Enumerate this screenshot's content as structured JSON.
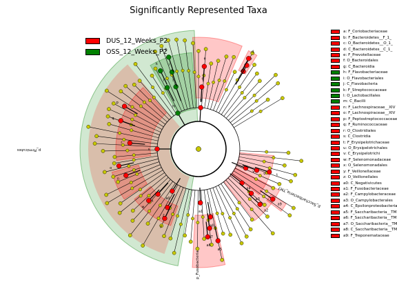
{
  "chart_data": {
    "type": "cladogram",
    "title": "Significantly Represented Taxa",
    "groups": [
      {
        "name": "DUS_12_Weeks_P2",
        "color": "#ff0000"
      },
      {
        "name": "OSS_12_Weeks_P2",
        "color": "#008000"
      }
    ],
    "node_color_nonsignificant": "#c8c800",
    "taxa": [
      {
        "key": "a",
        "label": "a: F_Coriobacteriaceae",
        "group": "DUS_12_Weeks_P2"
      },
      {
        "key": "b",
        "label": "b: F_Bacteroidetes__F_1_",
        "group": "DUS_12_Weeks_P2"
      },
      {
        "key": "c",
        "label": "c: O_Bacteroidetes__O_1_",
        "group": "DUS_12_Weeks_P2"
      },
      {
        "key": "d",
        "label": "d: C_Bacteroidetes__C_1_",
        "group": "DUS_12_Weeks_P2"
      },
      {
        "key": "e",
        "label": "e: F_Prevotellaceae",
        "group": "DUS_12_Weeks_P2"
      },
      {
        "key": "f",
        "label": "f: O_Bacteroidales",
        "group": "DUS_12_Weeks_P2"
      },
      {
        "key": "g",
        "label": "g: C_Bacteroidia",
        "group": "DUS_12_Weeks_P2"
      },
      {
        "key": "h",
        "label": "h: F_Flavobacteriaceae",
        "group": "OSS_12_Weeks_P2"
      },
      {
        "key": "i",
        "label": "i: O_Flavobacteriales",
        "group": "OSS_12_Weeks_P2"
      },
      {
        "key": "j",
        "label": "j: C_Flavobacteria",
        "group": "OSS_12_Weeks_P2"
      },
      {
        "key": "k",
        "label": "k: F_Streptococcaceae",
        "group": "OSS_12_Weeks_P2"
      },
      {
        "key": "l",
        "label": "l: O_Lactobacillales",
        "group": "OSS_12_Weeks_P2"
      },
      {
        "key": "m",
        "label": "m: C_Bacilli",
        "group": "OSS_12_Weeks_P2"
      },
      {
        "key": "n",
        "label": "n: F_Lachnospiraceae__XIV",
        "group": "DUS_12_Weeks_P2"
      },
      {
        "key": "o",
        "label": "o: F_Lachnospiraceae__XIV",
        "group": "DUS_12_Weeks_P2"
      },
      {
        "key": "p",
        "label": "p: F_Peptostreptococcaceae",
        "group": "DUS_12_Weeks_P2"
      },
      {
        "key": "q",
        "label": "q: F_Ruminococcaceae",
        "group": "DUS_12_Weeks_P2"
      },
      {
        "key": "r",
        "label": "r: O_Clostridiales",
        "group": "DUS_12_Weeks_P2"
      },
      {
        "key": "s",
        "label": "s: C_Clostridia",
        "group": "DUS_12_Weeks_P2"
      },
      {
        "key": "t",
        "label": "t: F_Erysipelotrichaceae",
        "group": "DUS_12_Weeks_P2"
      },
      {
        "key": "u",
        "label": "u: O_Erysipelotrichales",
        "group": "DUS_12_Weeks_P2"
      },
      {
        "key": "v",
        "label": "v: C_Erysipelotrichi",
        "group": "DUS_12_Weeks_P2"
      },
      {
        "key": "w",
        "label": "w: F_Selenomonadaceae",
        "group": "DUS_12_Weeks_P2"
      },
      {
        "key": "x",
        "label": "x: O_Selenomonadales",
        "group": "DUS_12_Weeks_P2"
      },
      {
        "key": "y",
        "label": "y: F_Veillonellaceae",
        "group": "DUS_12_Weeks_P2"
      },
      {
        "key": "z",
        "label": "z: O_Veillonellales",
        "group": "DUS_12_Weeks_P2"
      },
      {
        "key": "a0",
        "label": "a0: C_Negativicutes",
        "group": "DUS_12_Weeks_P2"
      },
      {
        "key": "a1",
        "label": "a1: F_Fusobacteriaceae",
        "group": "DUS_12_Weeks_P2"
      },
      {
        "key": "a2",
        "label": "a2: F_Campylobacteraceae",
        "group": "DUS_12_Weeks_P2"
      },
      {
        "key": "a3",
        "label": "a3: O_Campylobacterales",
        "group": "DUS_12_Weeks_P2"
      },
      {
        "key": "a4",
        "label": "a4: C_Epsilonproteobacteria",
        "group": "DUS_12_Weeks_P2"
      },
      {
        "key": "a5",
        "label": "a5: F_Saccharibacteria__TM",
        "group": "DUS_12_Weeks_P2"
      },
      {
        "key": "a6",
        "label": "a6: F_Saccharibacteria__TM",
        "group": "DUS_12_Weeks_P2"
      },
      {
        "key": "a7",
        "label": "a7: O_Saccharibacteria__TM",
        "group": "DUS_12_Weeks_P2"
      },
      {
        "key": "a8",
        "label": "a8: C_Saccharibacteria__TM",
        "group": "DUS_12_Weeks_P2"
      },
      {
        "key": "a9",
        "label": "a9: F_Treponemataceae",
        "group": "DUS_12_Weeks_P2"
      }
    ],
    "phylum_labels": [
      {
        "text": "p_Firmicutes",
        "group": "OSS_12_Weeks_P2"
      },
      {
        "text": "p_Fusobacteria",
        "group": "DUS_12_Weeks_P2"
      },
      {
        "text": "p_Saccharibacteria_TM7",
        "group": "DUS_12_Weeks_P2"
      }
    ]
  }
}
